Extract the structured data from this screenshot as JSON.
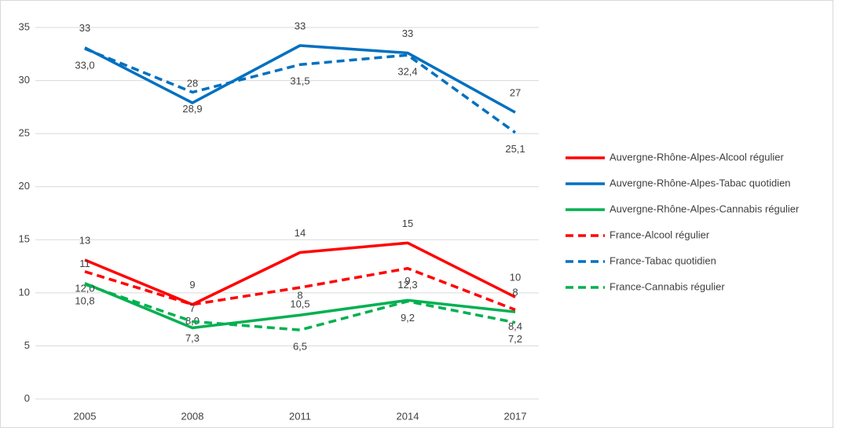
{
  "chart_data": {
    "type": "line",
    "categories": [
      "2005",
      "2008",
      "2011",
      "2014",
      "2017"
    ],
    "ylim": [
      0,
      35
    ],
    "yticks": [
      0,
      5,
      10,
      15,
      20,
      25,
      30,
      35
    ],
    "grid": true,
    "legend": "right",
    "series": [
      {
        "name": "Auvergne-Rhône-Alpes-Alcool régulier",
        "color": "#ff0000",
        "dashed": false,
        "values": [
          13.1,
          8.9,
          13.8,
          14.7,
          9.6
        ],
        "value_labels": [
          "13",
          "9",
          "14",
          "15",
          "10"
        ]
      },
      {
        "name": "Auvergne-Rhône-Alpes-Tabac quotidien",
        "color": "#0070c0",
        "dashed": false,
        "values": [
          33.1,
          27.9,
          33.3,
          32.6,
          27.0
        ],
        "value_labels": [
          "33",
          "28",
          "33",
          "33",
          "27"
        ]
      },
      {
        "name": "Auvergne-Rhône-Alpes-Cannabis régulier",
        "color": "#00b050",
        "dashed": false,
        "values": [
          10.9,
          6.7,
          7.9,
          9.3,
          8.2
        ],
        "value_labels": [
          "11",
          "7",
          "8",
          "9",
          "8"
        ]
      },
      {
        "name": "France-Alcool régulier",
        "color": "#ff0000",
        "dashed": true,
        "values": [
          12.0,
          8.9,
          10.5,
          12.3,
          8.4
        ],
        "value_labels": [
          "12,0",
          "8,9",
          "10,5",
          "12,3",
          "8,4"
        ]
      },
      {
        "name": "France-Tabac quotidien",
        "color": "#0070c0",
        "dashed": true,
        "values": [
          33.0,
          28.9,
          31.5,
          32.4,
          25.1
        ],
        "value_labels": [
          "33,0",
          "28,9",
          "31,5",
          "32,4",
          "25,1"
        ]
      },
      {
        "name": "France-Cannabis régulier",
        "color": "#00b050",
        "dashed": true,
        "values": [
          10.8,
          7.3,
          6.5,
          9.2,
          7.2
        ],
        "value_labels": [
          "10,8",
          "7,3",
          "6,5",
          "9,2",
          "7,2"
        ]
      }
    ]
  }
}
